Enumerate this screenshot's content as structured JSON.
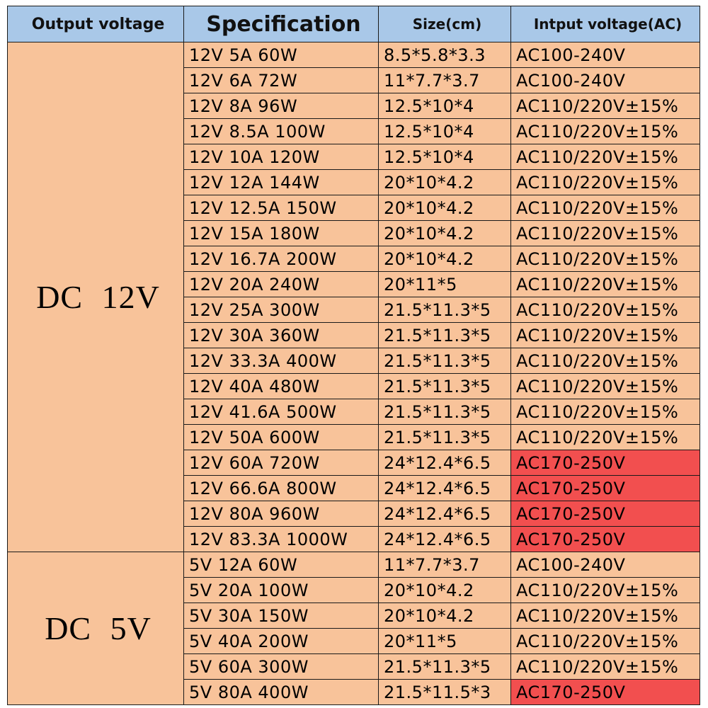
{
  "headers": {
    "output_voltage": "Output voltage",
    "specification": "Specification",
    "size": "Size(cm)",
    "input_voltage": "Intput voltage(AC)"
  },
  "colors": {
    "header_bg": "#a9c8e8",
    "cell_bg": "#f8c39a",
    "highlight_bg": "#f24f4f"
  },
  "groups": [
    {
      "label": "DC 12V",
      "rows": [
        {
          "spec": "12V 5A 60W",
          "size": "8.5*5.8*3.3",
          "input": "AC100-240V",
          "highlight": false
        },
        {
          "spec": "12V 6A 72W",
          "size": "11*7.7*3.7",
          "input": "AC100-240V",
          "highlight": false
        },
        {
          "spec": "12V 8A 96W",
          "size": "12.5*10*4",
          "input": "AC110/220V±15%",
          "highlight": false
        },
        {
          "spec": "12V 8.5A 100W",
          "size": "12.5*10*4",
          "input": "AC110/220V±15%",
          "highlight": false
        },
        {
          "spec": "12V 10A 120W",
          "size": "12.5*10*4",
          "input": "AC110/220V±15%",
          "highlight": false
        },
        {
          "spec": "12V 12A 144W",
          "size": "20*10*4.2",
          "input": "AC110/220V±15%",
          "highlight": false
        },
        {
          "spec": "12V 12.5A 150W",
          "size": "20*10*4.2",
          "input": "AC110/220V±15%",
          "highlight": false
        },
        {
          "spec": "12V 15A 180W",
          "size": "20*10*4.2",
          "input": "AC110/220V±15%",
          "highlight": false
        },
        {
          "spec": "12V 16.7A 200W",
          "size": "20*10*4.2",
          "input": "AC110/220V±15%",
          "highlight": false
        },
        {
          "spec": "12V 20A 240W",
          "size": "20*11*5",
          "input": "AC110/220V±15%",
          "highlight": false
        },
        {
          "spec": "12V 25A 300W",
          "size": "21.5*11.3*5",
          "input": "AC110/220V±15%",
          "highlight": false
        },
        {
          "spec": "12V 30A 360W",
          "size": "21.5*11.3*5",
          "input": "AC110/220V±15%",
          "highlight": false
        },
        {
          "spec": "12V 33.3A 400W",
          "size": "21.5*11.3*5",
          "input": "AC110/220V±15%",
          "highlight": false
        },
        {
          "spec": "12V 40A 480W",
          "size": "21.5*11.3*5",
          "input": "AC110/220V±15%",
          "highlight": false
        },
        {
          "spec": "12V 41.6A 500W",
          "size": "21.5*11.3*5",
          "input": "AC110/220V±15%",
          "highlight": false
        },
        {
          "spec": "12V 50A 600W",
          "size": "21.5*11.3*5",
          "input": "AC110/220V±15%",
          "highlight": false
        },
        {
          "spec": "12V 60A 720W",
          "size": "24*12.4*6.5",
          "input": "AC170-250V",
          "highlight": true
        },
        {
          "spec": "12V 66.6A 800W",
          "size": "24*12.4*6.5",
          "input": "AC170-250V",
          "highlight": true
        },
        {
          "spec": "12V 80A 960W",
          "size": "24*12.4*6.5",
          "input": "AC170-250V",
          "highlight": true
        },
        {
          "spec": "12V 83.3A 1000W",
          "size": "24*12.4*6.5",
          "input": "AC170-250V",
          "highlight": true
        }
      ]
    },
    {
      "label": "DC 5V",
      "rows": [
        {
          "spec": "5V 12A 60W",
          "size": "11*7.7*3.7",
          "input": "AC100-240V",
          "highlight": false
        },
        {
          "spec": "5V 20A 100W",
          "size": "20*10*4.2",
          "input": "AC110/220V±15%",
          "highlight": false
        },
        {
          "spec": "5V 30A 150W",
          "size": "20*10*4.2",
          "input": "AC110/220V±15%",
          "highlight": false
        },
        {
          "spec": "5V 40A 200W",
          "size": "20*11*5",
          "input": "AC110/220V±15%",
          "highlight": false
        },
        {
          "spec": "5V 60A 300W",
          "size": "21.5*11.3*5",
          "input": "AC110/220V±15%",
          "highlight": false
        },
        {
          "spec": "5V 80A 400W",
          "size": "21.5*11.5*3",
          "input": "AC170-250V",
          "highlight": true
        }
      ]
    }
  ]
}
